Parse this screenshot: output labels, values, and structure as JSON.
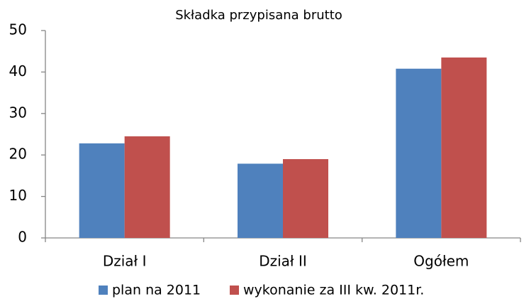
{
  "chart_data": {
    "type": "bar",
    "title": "Składka przypisana brutto",
    "categories": [
      "Dział I",
      "Dział II",
      "Ogółem"
    ],
    "series": [
      {
        "name": "plan na 2011",
        "color": "#4f81bd",
        "values": [
          22.8,
          17.9,
          40.8
        ]
      },
      {
        "name": "wykonanie za III kw. 2011r.",
        "color": "#c0504d",
        "values": [
          24.5,
          19.0,
          43.5
        ]
      }
    ],
    "ylim": [
      0,
      50
    ],
    "yticks": [
      0,
      10,
      20,
      30,
      40,
      50
    ],
    "grid": false,
    "legend": "bottom"
  }
}
